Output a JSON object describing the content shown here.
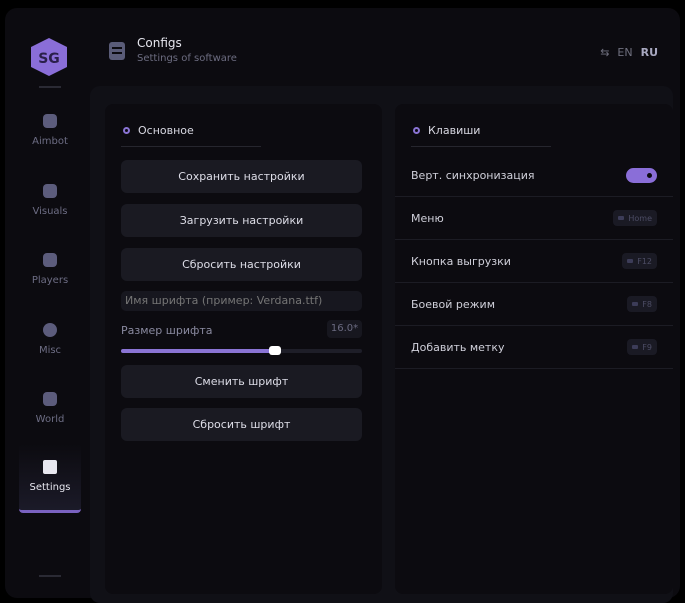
{
  "header": {
    "title": "Configs",
    "subtitle": "Settings of software",
    "lang_en": "EN",
    "lang_ru": "RU"
  },
  "sidebar": {
    "items": [
      {
        "label": "Aimbot",
        "icon": "skull-icon"
      },
      {
        "label": "Visuals",
        "icon": "vr-headset-icon"
      },
      {
        "label": "Players",
        "icon": "users-icon"
      },
      {
        "label": "Misc",
        "icon": "gamepad-icon"
      },
      {
        "label": "World",
        "icon": "briefcase-icon"
      },
      {
        "label": "Settings",
        "icon": "list-icon",
        "active": true
      }
    ]
  },
  "left": {
    "section": "Основное",
    "save": "Сохранить настройки",
    "load": "Загрузить настройки",
    "reset": "Сбросить настройки",
    "font_placeholder": "Имя шрифта (пример: Verdana.ttf)",
    "font_size_label": "Размер шрифта",
    "font_size_value": "16.0*",
    "font_size_fraction": 0.64,
    "change_font": "Сменить шрифт",
    "reset_font": "Сбросить шрифт"
  },
  "right": {
    "section": "Клавиши",
    "vsync_label": "Верт. синхронизация",
    "vsync_on": true,
    "binds": [
      {
        "label": "Меню",
        "key": "Home"
      },
      {
        "label": "Кнопка выгрузки",
        "key": "F12"
      },
      {
        "label": "Боевой режим",
        "key": "F8"
      },
      {
        "label": "Добавить метку",
        "key": "F9"
      }
    ]
  },
  "colors": {
    "accent": "#8a74d4",
    "bg": "#0c0b10"
  }
}
